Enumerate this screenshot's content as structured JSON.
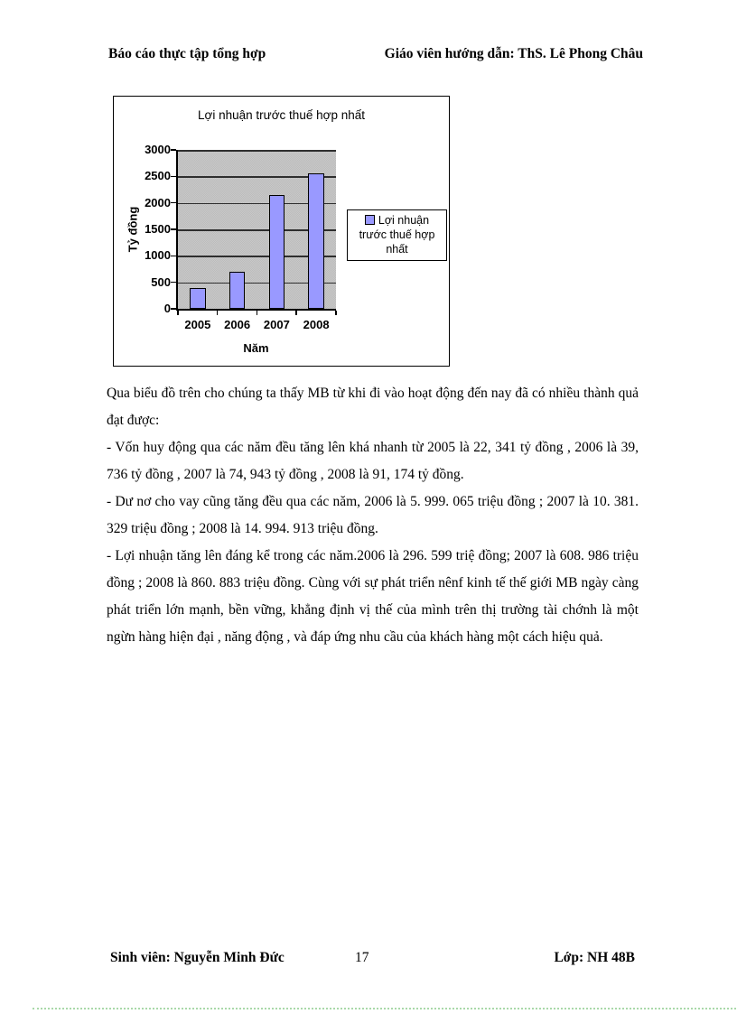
{
  "page": {
    "header": {
      "left": "Báo cáo thực tập tổng hợp",
      "right": "Giáo viên hướng dẫn:  ThS. Lê Phong Châu"
    },
    "footer": {
      "left": "Sinh viên: Nguyễn Minh Đức",
      "page_number": "17",
      "right": "Lớp: NH 48B"
    }
  },
  "body": {
    "paragraphs": [
      "Qua biểu đồ trên cho chúng ta thấy MB từ khi đi vào hoạt động đến nay đã có nhiều thành quả đạt được:",
      "- Vốn huy động qua các năm đều tăng lên khá nhanh từ 2005 là 22, 341 tỷ đồng , 2006 là 39, 736 tỷ đồng , 2007 là 74, 943 tỷ đồng , 2008 là 91, 174 tỷ đồng.",
      "- Dư nơ cho vay cũng tăng đều qua các năm, 2006 là 5. 999. 065 triệu đồng ; 2007 là 10. 381. 329 triệu đồng ; 2008 là 14. 994. 913 triệu đồng.",
      "- Lợi nhuận tăng lên đáng kể trong các năm.2006 là 296. 599 triệ đồng; 2007 là 608. 986 triệu đồng ; 2008 là 860. 883 triệu đồng. Cùng với sự phát triển nênf kinh tế thế giới MB ngày càng phát triển lớn mạnh, bền vững, khẳng định vị thế của mình trên thị trường tài chớnh là một ngừn hàng hiện đại , năng động , và đáp ứng nhu cầu của khách hàng một cách hiệu quả."
    ]
  },
  "chart_data": {
    "type": "bar",
    "title": "Lợi nhuận trước thuế hợp nhất",
    "categories": [
      "2005",
      "2006",
      "2007",
      "2008"
    ],
    "values": [
      400,
      700,
      2140,
      2560
    ],
    "xlabel": "Năm",
    "ylabel": "Tỷ đồng",
    "ylim": [
      0,
      3000
    ],
    "yticks": [
      0,
      500,
      1000,
      1500,
      2000,
      2500,
      3000
    ],
    "legend": [
      "Lợi nhuận trước thuế hợp nhất"
    ],
    "legend_position": "right",
    "grid": true,
    "colors": {
      "bar_fill": "#9999FF",
      "bar_border": "#000000",
      "plot_bg": "#C0C0C0",
      "gridline": "#2E2E2E",
      "chart_border": "#000000"
    }
  }
}
